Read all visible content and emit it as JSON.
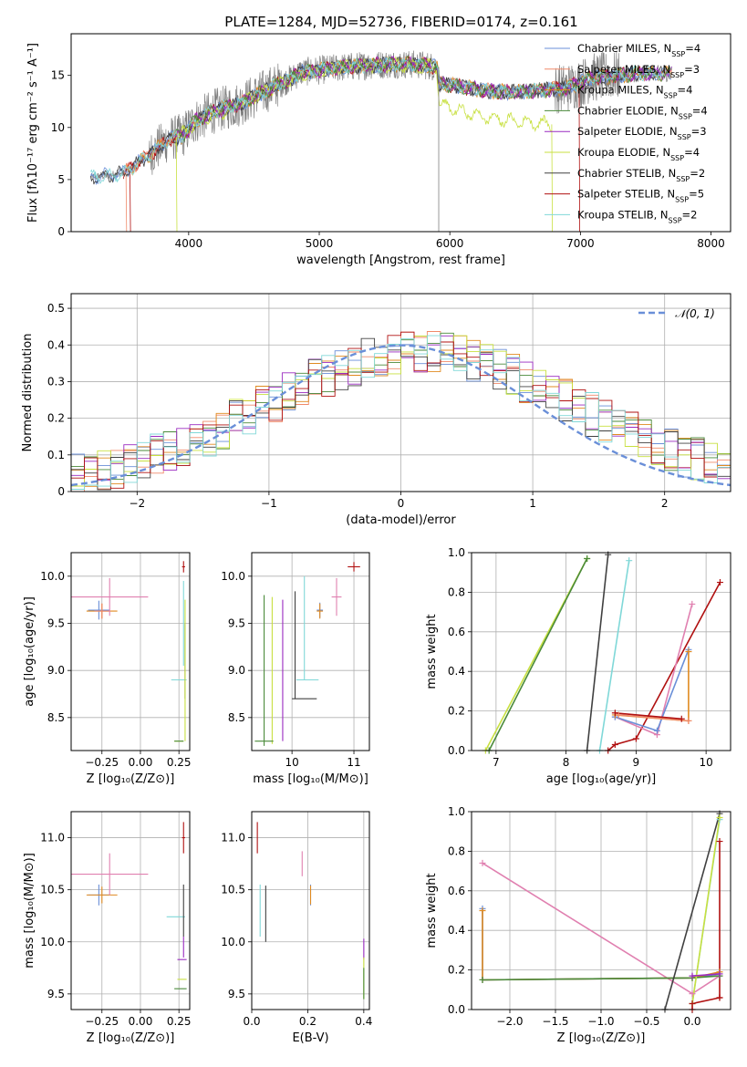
{
  "figure_title": "PLATE=1284, MJD=52736, FIBERID=0174, z=0.161",
  "colors": {
    "chabrier_miles": "#6a8fd8",
    "salpeter_miles": "#f08a6a",
    "kroupa_miles": "#e08a20",
    "chabrier_elodie": "#4a8a3a",
    "salpeter_elodie": "#9a2ac0",
    "kroupa_elodie": "#c8e040",
    "chabrier_stelib": "#404040",
    "salpeter_stelib": "#b01010",
    "kroupa_stelib": "#80d8d8",
    "pink": "#e080b0",
    "grid": "#b0b0b0",
    "spectrum": "#808080",
    "gaussian": "#6a8fd8"
  },
  "chart_data": [
    {
      "id": "spectrum",
      "type": "line",
      "title": "PLATE=1284, MJD=52736, FIBERID=0174, z=0.161",
      "xlabel": "wavelength [Angstrom, rest frame]",
      "ylabel": "Flux [fλ10⁻¹⁷ erg cm⁻² s⁻¹ A⁻¹]",
      "xlim": [
        3100,
        8150
      ],
      "ylim": [
        0,
        19
      ],
      "xticks": [
        4000,
        5000,
        6000,
        7000,
        8000
      ],
      "yticks": [
        0,
        5,
        10,
        15
      ],
      "grid": false,
      "legend_position": "top-right",
      "legend": [
        {
          "name": "Chabrier MILES, N",
          "sub": "SSP",
          "tail": "=4",
          "color_key": "chabrier_miles"
        },
        {
          "name": "Salpeter MILES, N",
          "sub": "SSP",
          "tail": "=3",
          "color_key": "salpeter_miles"
        },
        {
          "name": "Kroupa MILES, N",
          "sub": "SSP",
          "tail": "=4",
          "color_key": "kroupa_miles"
        },
        {
          "name": "Chabrier ELODIE, N",
          "sub": "SSP",
          "tail": "=4",
          "color_key": "chabrier_elodie"
        },
        {
          "name": "Salpeter ELODIE, N",
          "sub": "SSP",
          "tail": "=3",
          "color_key": "salpeter_elodie"
        },
        {
          "name": "Kroupa ELODIE, N",
          "sub": "SSP",
          "tail": "=4",
          "color_key": "kroupa_elodie"
        },
        {
          "name": "Chabrier STELIB, N",
          "sub": "SSP",
          "tail": "=2",
          "color_key": "chabrier_stelib"
        },
        {
          "name": "Salpeter STELIB, N",
          "sub": "SSP",
          "tail": "=5",
          "color_key": "salpeter_stelib"
        },
        {
          "name": "Kroupa STELIB, N",
          "sub": "SSP",
          "tail": "=2",
          "color_key": "kroupa_stelib"
        }
      ],
      "model_continuum": {
        "x": [
          3250,
          3500,
          3700,
          3850,
          3950,
          4050,
          4200,
          4400,
          4600,
          4800,
          4850,
          5000,
          5200,
          5400,
          5600,
          5800,
          5900,
          5920,
          6100,
          6300,
          6500,
          6700,
          6900,
          7100,
          7300,
          7500
        ],
        "y": [
          5.2,
          5.6,
          7.4,
          8.9,
          9.2,
          10.6,
          11.6,
          12.3,
          13.6,
          14.8,
          15.3,
          15.5,
          15.8,
          16.0,
          16.1,
          16.0,
          15.8,
          14.2,
          13.9,
          13.5,
          13.4,
          13.6,
          13.8,
          14.8,
          15.0,
          15.2
        ]
      },
      "elodie_continuum": {
        "x": [
          3900,
          4100,
          4400,
          4800,
          5200,
          5600,
          5900,
          5920,
          6100,
          6300,
          6500,
          6700,
          6780
        ],
        "y": [
          9.0,
          10.6,
          12.3,
          14.8,
          15.9,
          16.0,
          15.8,
          12.2,
          11.5,
          10.9,
          10.6,
          10.4,
          10.3
        ]
      }
    },
    {
      "id": "residuals",
      "type": "step",
      "xlabel": "(data-model)/error",
      "ylabel": "Normed distribution",
      "xlim": [
        -2.5,
        2.5
      ],
      "ylim": [
        0,
        0.54
      ],
      "xticks": [
        -2,
        -1,
        0,
        1,
        2
      ],
      "xtick_labels": [
        "−2",
        "−1",
        "0",
        "1",
        "2"
      ],
      "yticks": [
        0,
        0.1,
        0.2,
        0.3,
        0.4,
        0.5
      ],
      "grid": true,
      "legend": [
        {
          "name": "𝒩(0, 1)",
          "color_key": "gaussian",
          "style": "dashed"
        }
      ],
      "legend_position": "top-right",
      "bin_width": 0.1,
      "gaussian": {
        "mean": 0,
        "sigma": 1
      }
    },
    {
      "id": "age_vs_Z",
      "type": "scatter",
      "xlabel": "Z [log₁₀(Z/Z⊙)]",
      "ylabel": "age  [log₁₀(age/yr)]",
      "xlim": [
        -0.45,
        0.32
      ],
      "ylim": [
        8.15,
        10.25
      ],
      "xticks": [
        -0.25,
        0.0,
        0.25
      ],
      "xtick_labels": [
        "−0.25",
        "0.00",
        "0.25"
      ],
      "yticks": [
        8.5,
        9.0,
        9.5,
        10.0
      ],
      "grid": true,
      "points": [
        {
          "x": -0.27,
          "y": 9.64,
          "xerr": 0.07,
          "yerr": 0.1,
          "color_key": "chabrier_miles"
        },
        {
          "x": -0.25,
          "y": 9.63,
          "xerr": 0.1,
          "yerr": 0.08,
          "color_key": "kroupa_miles"
        },
        {
          "x": -0.25,
          "y": 9.63,
          "xerr": 0.05,
          "yerr": 0.08,
          "color_key": "salpeter_miles"
        },
        {
          "x": -0.2,
          "y": 9.78,
          "xerr": 0.25,
          "yerr": 0.2,
          "color_key": "pink"
        },
        {
          "x": 0.28,
          "y": 10.1,
          "xerr": 0.01,
          "yerr": 0.06,
          "color_key": "salpeter_stelib"
        },
        {
          "x": 0.25,
          "y": 8.9,
          "xerr": 0.05,
          "yerr": 0.0,
          "color_key": "kroupa_stelib"
        },
        {
          "x": 0.28,
          "y": 9.5,
          "xerr": 0.0,
          "yerr": 0.45,
          "color_key": "kroupa_stelib"
        },
        {
          "x": 0.29,
          "y": 9.1,
          "xerr": 0.0,
          "yerr": 0.4,
          "color_key": "chabrier_stelib"
        },
        {
          "x": 0.29,
          "y": 9.0,
          "xerr": 0.0,
          "yerr": 0.75,
          "color_key": "kroupa_elodie"
        },
        {
          "x": 0.25,
          "y": 8.25,
          "xerr": 0.03,
          "yerr": 0.0,
          "color_key": "kroupa_elodie"
        },
        {
          "x": 0.25,
          "y": 8.25,
          "xerr": 0.03,
          "yerr": 0.0,
          "color_key": "chabrier_elodie"
        }
      ]
    },
    {
      "id": "age_vs_mass",
      "type": "scatter",
      "xlabel": "mass [log₁₀(M/M⊙)]",
      "ylabel": "",
      "xlim": [
        9.35,
        11.25
      ],
      "ylim": [
        8.15,
        10.25
      ],
      "xticks": [
        10,
        11
      ],
      "yticks": [
        8.5,
        9.0,
        9.5,
        10.0
      ],
      "grid": true,
      "points": [
        {
          "x": 9.55,
          "y": 9.0,
          "xerr": 0.0,
          "yerr": 0.8,
          "color_key": "chabrier_elodie"
        },
        {
          "x": 9.68,
          "y": 9.0,
          "xerr": 0.0,
          "yerr": 0.78,
          "color_key": "kroupa_elodie"
        },
        {
          "x": 9.85,
          "y": 9.0,
          "xerr": 0.0,
          "yerr": 0.75,
          "color_key": "salpeter_elodie"
        },
        {
          "x": 10.05,
          "y": 9.27,
          "xerr": 0.0,
          "yerr": 0.57,
          "color_key": "chabrier_stelib"
        },
        {
          "x": 10.2,
          "y": 8.7,
          "xerr": 0.2,
          "yerr": 0.0,
          "color_key": "chabrier_stelib"
        },
        {
          "x": 10.25,
          "y": 8.9,
          "xerr": 0.18,
          "yerr": 0.0,
          "color_key": "kroupa_stelib"
        },
        {
          "x": 10.2,
          "y": 9.45,
          "xerr": 0.0,
          "yerr": 0.55,
          "color_key": "kroupa_stelib"
        },
        {
          "x": 10.45,
          "y": 9.64,
          "xerr": 0.05,
          "yerr": 0.08,
          "color_key": "chabrier_miles"
        },
        {
          "x": 10.45,
          "y": 9.63,
          "xerr": 0.05,
          "yerr": 0.08,
          "color_key": "kroupa_miles"
        },
        {
          "x": 10.72,
          "y": 9.78,
          "xerr": 0.08,
          "yerr": 0.2,
          "color_key": "pink"
        },
        {
          "x": 11.0,
          "y": 10.1,
          "xerr": 0.1,
          "yerr": 0.05,
          "color_key": "salpeter_stelib"
        },
        {
          "x": 9.55,
          "y": 8.25,
          "xerr": 0.15,
          "yerr": 0.0,
          "color_key": "chabrier_elodie"
        }
      ]
    },
    {
      "id": "weight_vs_age",
      "type": "line",
      "xlabel": "age  [log₁₀(age/yr)]",
      "ylabel": "mass weight",
      "xlim": [
        6.65,
        10.35
      ],
      "ylim": [
        0,
        1.0
      ],
      "xticks": [
        7,
        8,
        9,
        10
      ],
      "yticks": [
        0.0,
        0.2,
        0.4,
        0.6,
        0.8,
        1.0
      ],
      "grid": true,
      "series": [
        {
          "color_key": "kroupa_elodie",
          "x": [
            6.85,
            8.3
          ],
          "y": [
            0.0,
            0.97
          ]
        },
        {
          "color_key": "chabrier_elodie",
          "x": [
            6.9,
            8.3
          ],
          "y": [
            0.0,
            0.97
          ]
        },
        {
          "color_key": "chabrier_stelib",
          "x": [
            8.3,
            8.6
          ],
          "y": [
            0.0,
            0.99
          ]
        },
        {
          "color_key": "kroupa_stelib",
          "x": [
            8.48,
            8.9
          ],
          "y": [
            0.0,
            0.96
          ]
        },
        {
          "color_key": "salpeter_stelib",
          "x": [
            8.6,
            8.7,
            9.0,
            10.2
          ],
          "y": [
            0.0,
            0.03,
            0.06,
            0.85
          ]
        },
        {
          "color_key": "pink",
          "x": [
            8.7,
            9.3,
            9.8
          ],
          "y": [
            0.17,
            0.08,
            0.74
          ]
        },
        {
          "color_key": "chabrier_miles",
          "x": [
            8.7,
            9.3,
            9.75
          ],
          "y": [
            0.17,
            0.1,
            0.51
          ]
        },
        {
          "color_key": "kroupa_miles",
          "x": [
            8.7,
            9.75,
            9.75
          ],
          "y": [
            0.18,
            0.15,
            0.5
          ]
        },
        {
          "color_key": "salpeter_miles",
          "x": [
            8.75,
            9.75
          ],
          "y": [
            0.18,
            0.15
          ]
        },
        {
          "color_key": "salpeter_stelib",
          "x": [
            8.7,
            9.65
          ],
          "y": [
            0.19,
            0.16
          ]
        }
      ]
    },
    {
      "id": "mass_vs_Z",
      "type": "scatter",
      "xlabel": "Z [log₁₀(Z/Z⊙)]",
      "ylabel": "mass [log₁₀(M/M⊙)]",
      "xlim": [
        -0.45,
        0.32
      ],
      "ylim": [
        9.35,
        11.25
      ],
      "xticks": [
        -0.25,
        0.0,
        0.25
      ],
      "xtick_labels": [
        "−0.25",
        "0.00",
        "0.25"
      ],
      "yticks": [
        9.5,
        10.0,
        10.5,
        11.0
      ],
      "grid": true,
      "points": [
        {
          "x": -0.27,
          "y": 10.45,
          "xerr": 0.07,
          "yerr": 0.1,
          "color_key": "chabrier_miles"
        },
        {
          "x": -0.25,
          "y": 10.45,
          "xerr": 0.1,
          "yerr": 0.08,
          "color_key": "kroupa_miles"
        },
        {
          "x": -0.2,
          "y": 10.65,
          "xerr": 0.25,
          "yerr": 0.2,
          "color_key": "pink"
        },
        {
          "x": 0.28,
          "y": 11.0,
          "xerr": 0.01,
          "yerr": 0.15,
          "color_key": "salpeter_stelib"
        },
        {
          "x": 0.23,
          "y": 10.24,
          "xerr": 0.06,
          "yerr": 0.0,
          "color_key": "kroupa_stelib"
        },
        {
          "x": 0.28,
          "y": 10.3,
          "xerr": 0.0,
          "yerr": 0.25,
          "color_key": "chabrier_stelib"
        },
        {
          "x": 0.27,
          "y": 9.83,
          "xerr": 0.03,
          "yerr": 0.0,
          "color_key": "salpeter_elodie"
        },
        {
          "x": 0.28,
          "y": 9.95,
          "xerr": 0.0,
          "yerr": 0.1,
          "color_key": "salpeter_elodie"
        },
        {
          "x": 0.27,
          "y": 9.64,
          "xerr": 0.03,
          "yerr": 0.0,
          "color_key": "kroupa_elodie"
        },
        {
          "x": 0.26,
          "y": 9.55,
          "xerr": 0.04,
          "yerr": 0.0,
          "color_key": "chabrier_elodie"
        }
      ]
    },
    {
      "id": "mass_vs_ebv",
      "type": "scatter",
      "xlabel": "E(B-V)",
      "ylabel": "",
      "xlim": [
        0.0,
        0.42
      ],
      "ylim": [
        9.35,
        11.25
      ],
      "xticks": [
        0.0,
        0.2,
        0.4
      ],
      "yticks": [
        9.5,
        10.0,
        10.5,
        11.0
      ],
      "grid": true,
      "points": [
        {
          "x": 0.02,
          "y": 11.0,
          "xerr": 0.0,
          "yerr": 0.15,
          "color_key": "salpeter_stelib"
        },
        {
          "x": 0.03,
          "y": 10.3,
          "xerr": 0.0,
          "yerr": 0.25,
          "color_key": "kroupa_stelib"
        },
        {
          "x": 0.05,
          "y": 10.27,
          "xerr": 0.0,
          "yerr": 0.27,
          "color_key": "chabrier_stelib"
        },
        {
          "x": 0.18,
          "y": 10.75,
          "xerr": 0.0,
          "yerr": 0.12,
          "color_key": "pink"
        },
        {
          "x": 0.21,
          "y": 10.45,
          "xerr": 0.0,
          "yerr": 0.1,
          "color_key": "chabrier_miles"
        },
        {
          "x": 0.21,
          "y": 10.45,
          "xerr": 0.0,
          "yerr": 0.09,
          "color_key": "kroupa_miles"
        },
        {
          "x": 0.4,
          "y": 9.93,
          "xerr": 0.0,
          "yerr": 0.1,
          "color_key": "salpeter_elodie"
        },
        {
          "x": 0.4,
          "y": 9.65,
          "xerr": 0.0,
          "yerr": 0.2,
          "color_key": "kroupa_elodie"
        },
        {
          "x": 0.4,
          "y": 9.6,
          "xerr": 0.0,
          "yerr": 0.15,
          "color_key": "chabrier_elodie"
        }
      ]
    },
    {
      "id": "weight_vs_Z",
      "type": "line",
      "xlabel": "Z [log₁₀(Z/Z⊙)]",
      "ylabel": "mass weight",
      "xlim": [
        -2.42,
        0.42
      ],
      "ylim": [
        0,
        1.0
      ],
      "xticks": [
        -2.0,
        -1.5,
        -1.0,
        -0.5,
        0.0
      ],
      "xtick_labels": [
        "−2.0",
        "−1.5",
        "−1.0",
        "−0.5",
        "0.0"
      ],
      "yticks": [
        0.0,
        0.2,
        0.4,
        0.6,
        0.8,
        1.0
      ],
      "grid": true,
      "series": [
        {
          "color_key": "pink",
          "x": [
            -2.3,
            0.0,
            0.3
          ],
          "y": [
            0.74,
            0.08,
            0.17
          ]
        },
        {
          "color_key": "chabrier_miles",
          "x": [
            -2.3,
            -2.3,
            0.0,
            0.3
          ],
          "y": [
            0.51,
            0.15,
            0.16,
            0.18
          ]
        },
        {
          "color_key": "kroupa_miles",
          "x": [
            -2.3,
            -2.3,
            0.0,
            0.3
          ],
          "y": [
            0.5,
            0.15,
            0.16,
            0.19
          ]
        },
        {
          "color_key": "chabrier_elodie",
          "x": [
            -2.3,
            0.0,
            0.3
          ],
          "y": [
            0.15,
            0.16,
            0.17
          ]
        },
        {
          "color_key": "chabrier_stelib",
          "x": [
            -0.3,
            0.3
          ],
          "y": [
            0.0,
            0.99
          ]
        },
        {
          "color_key": "kroupa_stelib",
          "x": [
            0.0,
            0.3
          ],
          "y": [
            0.03,
            0.96
          ]
        },
        {
          "color_key": "kroupa_elodie",
          "x": [
            0.0,
            0.3
          ],
          "y": [
            0.03,
            0.97
          ]
        },
        {
          "color_key": "salpeter_stelib",
          "x": [
            0.0,
            0.0,
            0.3,
            0.3,
            0.3
          ],
          "y": [
            0.0,
            0.03,
            0.06,
            0.85,
            0.06
          ]
        },
        {
          "color_key": "salpeter_elodie",
          "x": [
            0.0,
            0.3
          ],
          "y": [
            0.17,
            0.18
          ]
        }
      ]
    }
  ]
}
